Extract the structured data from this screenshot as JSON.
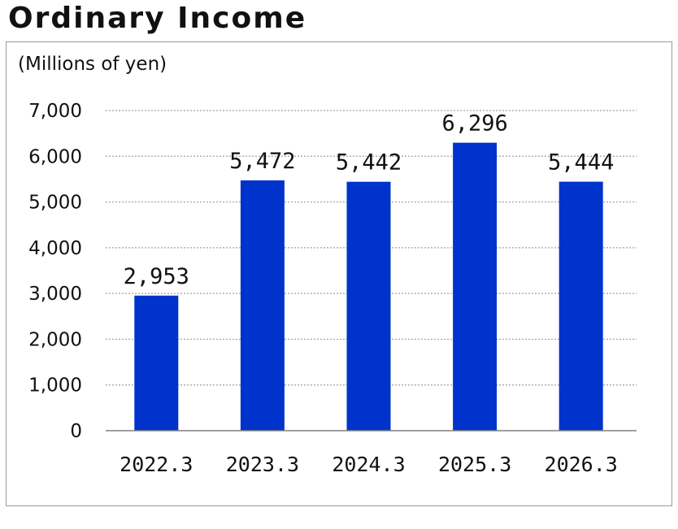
{
  "chart_data": {
    "type": "bar",
    "title": "Ordinary Income",
    "ylabel": "(Millions of yen)",
    "xlabel": "",
    "categories": [
      "2022.3",
      "2023.3",
      "2024.3",
      "2025.3",
      "2026.3"
    ],
    "values": [
      2953,
      5472,
      5442,
      6296,
      5444
    ],
    "value_labels": [
      "2,953",
      "5,472",
      "5,442",
      "6,296",
      "5,444"
    ],
    "ylim": [
      0,
      7000
    ],
    "yticks": [
      0,
      1000,
      2000,
      3000,
      4000,
      5000,
      6000,
      7000
    ],
    "ytick_labels": [
      "0",
      "1,000",
      "2,000",
      "3,000",
      "4,000",
      "5,000",
      "6,000",
      "7,000"
    ],
    "grid": true,
    "bar_color": "#0033cc",
    "grid_color": "#a0a0a0",
    "axis_color": "#808080"
  }
}
